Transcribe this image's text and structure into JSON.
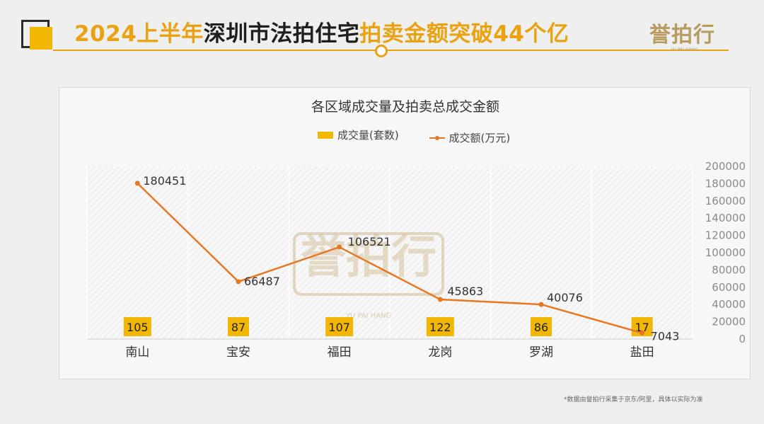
{
  "header": {
    "title_part1": "2024上半年",
    "title_part2": "深圳市法拍住宅",
    "title_part3": "拍卖金额突破44个亿",
    "logo_text": "誉拍行",
    "logo_sub": "YU PAI HANG"
  },
  "watermark": {
    "text": "誉拍行",
    "sub": "YU PAI HANG"
  },
  "footnote": "*数据由誉拍行采集于京东/阿里，具体以实际为准",
  "colors": {
    "accent": "#e9a312",
    "bar": "#f2b705",
    "line": "#e87722"
  },
  "chart_data": {
    "type": "bar",
    "title": "各区域成交量及拍卖总成交金额",
    "categories": [
      "南山",
      "宝安",
      "福田",
      "龙岗",
      "罗湖",
      "盐田"
    ],
    "series": [
      {
        "name": "成交量(套数)",
        "type": "bar",
        "values": [
          105,
          87,
          107,
          122,
          86,
          17
        ]
      },
      {
        "name": "成交额(万元)",
        "type": "line",
        "values": [
          180451,
          66487,
          106521,
          45863,
          40076,
          7043
        ]
      }
    ],
    "y_right": {
      "ticks": [
        0,
        20000,
        40000,
        60000,
        80000,
        100000,
        120000,
        140000,
        160000,
        180000,
        200000
      ],
      "ylim": [
        0,
        200000
      ]
    },
    "grid": true,
    "legend": "top-center"
  }
}
